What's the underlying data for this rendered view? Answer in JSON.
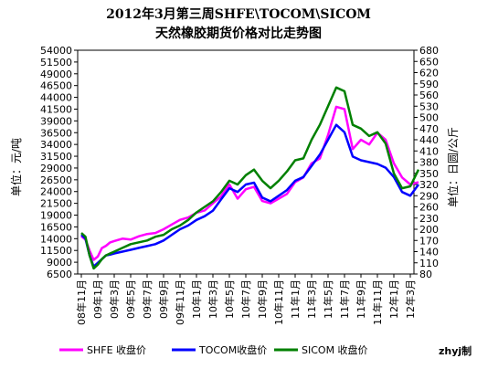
{
  "chart_data": {
    "type": "line",
    "title": "2012年3月第三周SHFE\\TOCOM\\SICOM",
    "subtitle": "天然橡胶期货价格对比走势图",
    "ylabel_left": "单位：元/吨",
    "ylabel_right": "单位：日圆/公斤",
    "ylim_left": [
      6500,
      54000
    ],
    "ylim_right": [
      80,
      680
    ],
    "yticks_left": [
      "6500",
      "9000",
      "11500",
      "14000",
      "16500",
      "19000",
      "21500",
      "24000",
      "26500",
      "29000",
      "31500",
      "34000",
      "36500",
      "39000",
      "41500",
      "44000",
      "46500",
      "49000",
      "51500",
      "54000"
    ],
    "yticks_right": [
      "80",
      "110",
      "140",
      "170",
      "200",
      "230",
      "260",
      "290",
      "320",
      "350",
      "380",
      "410",
      "440",
      "470",
      "500",
      "530",
      "560",
      "590",
      "620",
      "650",
      "680"
    ],
    "xticks": [
      "08年11月",
      "09年1月",
      "09年3月",
      "09年5月",
      "09年7月",
      "09年9月",
      "09年11月",
      "10年1月",
      "10年3月",
      "10年5月",
      "10年7月",
      "10年9月",
      "10年11月",
      "11年1月",
      "11年3月",
      "11年5月",
      "11年7月",
      "11年9月",
      "11年11月",
      "12年1月",
      "12年3月"
    ],
    "credit": "zhyj制",
    "grid": false,
    "legend_position": "bottom",
    "series": [
      {
        "name": "SHFE 收盘价",
        "axis": "left",
        "color": "#ff00ff",
        "x": [
          0,
          0.25,
          0.5,
          0.75,
          1,
          1.25,
          1.5,
          1.75,
          2,
          2.5,
          3,
          3.5,
          4,
          4.5,
          5,
          5.5,
          6,
          6.5,
          7,
          7.5,
          8,
          8.5,
          9,
          9.5,
          10,
          10.5,
          11,
          11.5,
          12,
          12.5,
          13,
          13.5,
          14,
          14.5,
          15,
          15.5,
          16,
          16.5,
          17,
          17.5,
          18,
          18.5,
          19,
          19.5,
          20,
          20.5
        ],
        "values": [
          14500,
          13800,
          11500,
          9500,
          10200,
          12000,
          12500,
          13200,
          13500,
          14000,
          13800,
          14500,
          15000,
          15200,
          16000,
          17000,
          18000,
          18500,
          19500,
          20000,
          21500,
          23000,
          25500,
          22500,
          24500,
          25000,
          22000,
          21500,
          22500,
          23500,
          26000,
          27000,
          30000,
          31000,
          36000,
          42000,
          41500,
          33000,
          35000,
          34000,
          36500,
          35000,
          30000,
          27000,
          25500,
          26000
        ]
      },
      {
        "name": "TOCOM收盘价",
        "axis": "right",
        "color": "#0000ff",
        "x": [
          0,
          0.25,
          0.5,
          0.75,
          1,
          1.25,
          1.5,
          1.75,
          2,
          2.5,
          3,
          3.5,
          4,
          4.5,
          5,
          5.5,
          6,
          6.5,
          7,
          7.5,
          8,
          8.5,
          9,
          9.5,
          10,
          10.5,
          11,
          11.5,
          12,
          12.5,
          13,
          13.5,
          14,
          14.5,
          15,
          15.5,
          16,
          16.5,
          17,
          17.5,
          18,
          18.5,
          19,
          19.5,
          20,
          20.5
        ],
        "values": [
          185,
          175,
          130,
          100,
          110,
          120,
          130,
          132,
          135,
          140,
          145,
          150,
          155,
          160,
          170,
          185,
          200,
          210,
          225,
          235,
          250,
          280,
          310,
          300,
          320,
          325,
          285,
          275,
          290,
          305,
          330,
          340,
          370,
          400,
          440,
          480,
          460,
          395,
          385,
          380,
          375,
          365,
          340,
          300,
          290,
          320
        ]
      },
      {
        "name": "SICOM 收盘价",
        "axis": "right",
        "color": "#008000",
        "x": [
          0,
          0.25,
          0.5,
          0.75,
          1,
          1.25,
          1.5,
          1.75,
          2,
          2.5,
          3,
          3.5,
          4,
          4.5,
          5,
          5.5,
          6,
          6.5,
          7,
          7.5,
          8,
          8.5,
          9,
          9.5,
          10,
          10.5,
          11,
          11.5,
          12,
          12.5,
          13,
          13.5,
          14,
          14.5,
          15,
          15.5,
          16,
          16.5,
          17,
          17.5,
          18,
          18.5,
          19,
          19.5,
          20,
          20.5
        ],
        "values": [
          190,
          180,
          130,
          95,
          105,
          120,
          130,
          135,
          140,
          150,
          160,
          165,
          170,
          180,
          185,
          200,
          210,
          225,
          245,
          260,
          275,
          300,
          330,
          320,
          345,
          360,
          330,
          310,
          330,
          355,
          385,
          390,
          440,
          480,
          530,
          580,
          570,
          480,
          470,
          450,
          460,
          430,
          350,
          310,
          315,
          360
        ]
      }
    ]
  }
}
